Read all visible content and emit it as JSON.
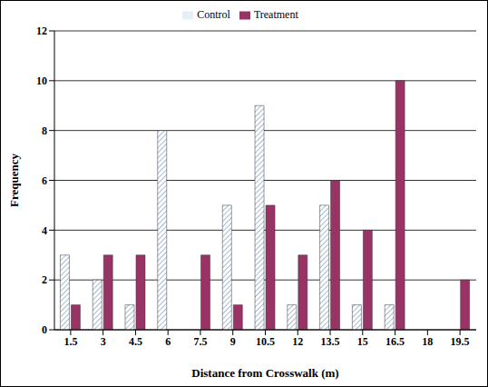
{
  "chart_data": {
    "type": "bar",
    "x_label": "Distance from Crosswalk (m)",
    "y_label": "Frequency",
    "categories": [
      "1.5",
      "3",
      "4.5",
      "6",
      "7.5",
      "9",
      "10.5",
      "12",
      "13.5",
      "15",
      "16.5",
      "18",
      "19.5"
    ],
    "series": [
      {
        "name": "Control",
        "color": "#8ea9c8",
        "values": [
          3,
          2,
          1,
          8,
          0,
          5,
          9,
          1,
          5,
          1,
          1,
          0,
          0
        ]
      },
      {
        "name": "Treatment",
        "color": "#993366",
        "values": [
          1,
          3,
          3,
          0,
          3,
          1,
          5,
          3,
          6,
          4,
          10,
          0,
          2
        ]
      }
    ],
    "ylim": [
      0,
      12
    ],
    "yticks": [
      0,
      2,
      4,
      6,
      8,
      10,
      12
    ],
    "grid": true,
    "legend": "top"
  }
}
